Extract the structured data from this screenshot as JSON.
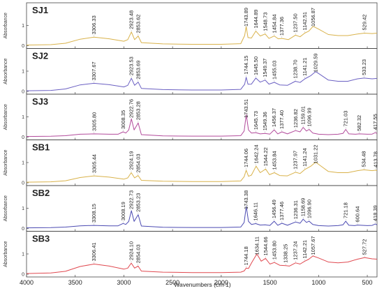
{
  "chart_data": {
    "type": "line",
    "xlabel": "Wavenumbers (cm-1)",
    "ylabel": "Absorbance",
    "xlim": [
      4000,
      400
    ],
    "x_reversed": true,
    "x_ticks": [
      4000,
      3500,
      3000,
      2500,
      2000,
      1500,
      1000,
      500
    ],
    "y_ticks": [
      0,
      1
    ],
    "grid": false,
    "panels": [
      {
        "name": "SJ1",
        "color": "#d9b24a",
        "peaks": [
          "3306.33",
          "2923.48",
          "2853.62",
          "1743.89",
          "1644.89",
          "1548.73",
          "1454.84",
          "1377.36",
          "1237.50",
          "1142.51",
          "1056.87",
          "529.42"
        ],
        "spectrum": [
          [
            4000,
            0.03
          ],
          [
            3750,
            0.05
          ],
          [
            3600,
            0.12
          ],
          [
            3450,
            0.32
          ],
          [
            3306,
            0.42
          ],
          [
            3150,
            0.34
          ],
          [
            3000,
            0.22
          ],
          [
            2960,
            0.3
          ],
          [
            2923,
            0.68
          ],
          [
            2890,
            0.3
          ],
          [
            2853,
            0.48
          ],
          [
            2820,
            0.15
          ],
          [
            2600,
            0.09
          ],
          [
            2300,
            0.07
          ],
          [
            2000,
            0.07
          ],
          [
            1800,
            0.1
          ],
          [
            1760,
            0.5
          ],
          [
            1744,
            0.95
          ],
          [
            1725,
            0.4
          ],
          [
            1690,
            0.38
          ],
          [
            1645,
            0.72
          ],
          [
            1600,
            0.48
          ],
          [
            1549,
            0.58
          ],
          [
            1510,
            0.36
          ],
          [
            1455,
            0.48
          ],
          [
            1415,
            0.34
          ],
          [
            1377,
            0.36
          ],
          [
            1310,
            0.3
          ],
          [
            1238,
            0.52
          ],
          [
            1190,
            0.44
          ],
          [
            1143,
            0.62
          ],
          [
            1100,
            0.72
          ],
          [
            1057,
            0.96
          ],
          [
            1000,
            0.82
          ],
          [
            900,
            0.55
          ],
          [
            800,
            0.5
          ],
          [
            700,
            0.5
          ],
          [
            600,
            0.58
          ],
          [
            529,
            0.62
          ],
          [
            450,
            0.6
          ],
          [
            400,
            0.62
          ]
        ]
      },
      {
        "name": "SJ2",
        "color": "#6a5fc2",
        "peaks": [
          "3307.67",
          "2923.53",
          "2853.69",
          "1744.15",
          "1645.50",
          "1549.37",
          "1455.03",
          "1238.70",
          "1141.21",
          "1029.59",
          "533.23"
        ],
        "spectrum": [
          [
            4000,
            0.03
          ],
          [
            3750,
            0.05
          ],
          [
            3600,
            0.12
          ],
          [
            3450,
            0.32
          ],
          [
            3307,
            0.4
          ],
          [
            3150,
            0.33
          ],
          [
            3000,
            0.22
          ],
          [
            2960,
            0.3
          ],
          [
            2923,
            0.65
          ],
          [
            2890,
            0.3
          ],
          [
            2853,
            0.46
          ],
          [
            2820,
            0.15
          ],
          [
            2600,
            0.09
          ],
          [
            2300,
            0.07
          ],
          [
            2000,
            0.07
          ],
          [
            1800,
            0.1
          ],
          [
            1760,
            0.35
          ],
          [
            1744,
            0.7
          ],
          [
            1725,
            0.35
          ],
          [
            1690,
            0.36
          ],
          [
            1645,
            0.66
          ],
          [
            1600,
            0.46
          ],
          [
            1549,
            0.56
          ],
          [
            1510,
            0.36
          ],
          [
            1455,
            0.45
          ],
          [
            1400,
            0.32
          ],
          [
            1320,
            0.3
          ],
          [
            1239,
            0.5
          ],
          [
            1190,
            0.44
          ],
          [
            1141,
            0.62
          ],
          [
            1080,
            0.78
          ],
          [
            1030,
            0.98
          ],
          [
            980,
            0.82
          ],
          [
            900,
            0.56
          ],
          [
            800,
            0.5
          ],
          [
            700,
            0.5
          ],
          [
            600,
            0.62
          ],
          [
            533,
            0.66
          ],
          [
            450,
            0.62
          ],
          [
            400,
            0.64
          ]
        ]
      },
      {
        "name": "SJ3",
        "color": "#b24a9b",
        "peaks": [
          "3305.80",
          "3008.35",
          "2922.76",
          "2853.28",
          "1743.51",
          "1645.73",
          "1549.36",
          "1456.37",
          "1377.40",
          "1236.82",
          "1159.01",
          "1096.99",
          "721.03",
          "582.32",
          "417.55"
        ],
        "spectrum": [
          [
            4000,
            0.03
          ],
          [
            3750,
            0.04
          ],
          [
            3600,
            0.07
          ],
          [
            3450,
            0.14
          ],
          [
            3306,
            0.16
          ],
          [
            3150,
            0.14
          ],
          [
            3060,
            0.14
          ],
          [
            3008,
            0.26
          ],
          [
            2980,
            0.2
          ],
          [
            2950,
            0.35
          ],
          [
            2923,
            0.9
          ],
          [
            2895,
            0.35
          ],
          [
            2853,
            0.7
          ],
          [
            2820,
            0.12
          ],
          [
            2600,
            0.06
          ],
          [
            2300,
            0.05
          ],
          [
            2000,
            0.05
          ],
          [
            1800,
            0.07
          ],
          [
            1765,
            0.3
          ],
          [
            1743,
            1.12
          ],
          [
            1720,
            0.35
          ],
          [
            1690,
            0.2
          ],
          [
            1646,
            0.22
          ],
          [
            1600,
            0.16
          ],
          [
            1549,
            0.18
          ],
          [
            1500,
            0.15
          ],
          [
            1456,
            0.36
          ],
          [
            1420,
            0.16
          ],
          [
            1377,
            0.26
          ],
          [
            1320,
            0.16
          ],
          [
            1237,
            0.32
          ],
          [
            1190,
            0.26
          ],
          [
            1159,
            0.48
          ],
          [
            1125,
            0.3
          ],
          [
            1097,
            0.38
          ],
          [
            1060,
            0.2
          ],
          [
            1000,
            0.14
          ],
          [
            900,
            0.12
          ],
          [
            800,
            0.14
          ],
          [
            750,
            0.18
          ],
          [
            721,
            0.38
          ],
          [
            690,
            0.16
          ],
          [
            620,
            0.14
          ],
          [
            582,
            0.16
          ],
          [
            500,
            0.14
          ],
          [
            450,
            0.15
          ],
          [
            417,
            0.22
          ],
          [
            400,
            0.18
          ]
        ]
      },
      {
        "name": "SB1",
        "color": "#d9b24a",
        "peaks": [
          "3305.44",
          "2924.19",
          "2854.03",
          "1744.06",
          "1642.24",
          "1544.22",
          "1453.84",
          "1237.97",
          "1141.24",
          "1031.22",
          "534.48",
          "413.78"
        ],
        "spectrum": [
          [
            4000,
            0.03
          ],
          [
            3750,
            0.05
          ],
          [
            3600,
            0.1
          ],
          [
            3450,
            0.26
          ],
          [
            3305,
            0.34
          ],
          [
            3150,
            0.28
          ],
          [
            3000,
            0.18
          ],
          [
            2960,
            0.24
          ],
          [
            2924,
            0.5
          ],
          [
            2890,
            0.24
          ],
          [
            2854,
            0.36
          ],
          [
            2820,
            0.12
          ],
          [
            2600,
            0.08
          ],
          [
            2300,
            0.06
          ],
          [
            2000,
            0.06
          ],
          [
            1800,
            0.09
          ],
          [
            1765,
            0.3
          ],
          [
            1744,
            0.62
          ],
          [
            1720,
            0.32
          ],
          [
            1690,
            0.38
          ],
          [
            1642,
            0.82
          ],
          [
            1600,
            0.5
          ],
          [
            1544,
            0.68
          ],
          [
            1505,
            0.4
          ],
          [
            1454,
            0.5
          ],
          [
            1400,
            0.36
          ],
          [
            1320,
            0.34
          ],
          [
            1238,
            0.52
          ],
          [
            1190,
            0.46
          ],
          [
            1141,
            0.66
          ],
          [
            1080,
            0.82
          ],
          [
            1031,
            1.02
          ],
          [
            980,
            0.84
          ],
          [
            900,
            0.56
          ],
          [
            800,
            0.5
          ],
          [
            700,
            0.5
          ],
          [
            600,
            0.6
          ],
          [
            534,
            0.64
          ],
          [
            450,
            0.6
          ],
          [
            414,
            0.62
          ],
          [
            400,
            0.6
          ]
        ]
      },
      {
        "name": "SB2",
        "color": "#4b4ab2",
        "peaks": [
          "3308.15",
          "3008.19",
          "2922.73",
          "2853.23",
          "1743.38",
          "1646.11",
          "1456.49",
          "1377.46",
          "1236.31",
          "1158.69",
          "1096.90",
          "721.18",
          "600.64",
          "418.39"
        ],
        "spectrum": [
          [
            4000,
            0.03
          ],
          [
            3750,
            0.04
          ],
          [
            3600,
            0.07
          ],
          [
            3450,
            0.13
          ],
          [
            3308,
            0.15
          ],
          [
            3150,
            0.13
          ],
          [
            3060,
            0.13
          ],
          [
            3008,
            0.25
          ],
          [
            2980,
            0.2
          ],
          [
            2950,
            0.35
          ],
          [
            2923,
            0.88
          ],
          [
            2895,
            0.35
          ],
          [
            2853,
            0.68
          ],
          [
            2820,
            0.12
          ],
          [
            2600,
            0.06
          ],
          [
            2300,
            0.05
          ],
          [
            2000,
            0.05
          ],
          [
            1800,
            0.07
          ],
          [
            1765,
            0.3
          ],
          [
            1743,
            1.1
          ],
          [
            1720,
            0.35
          ],
          [
            1690,
            0.2
          ],
          [
            1646,
            0.24
          ],
          [
            1600,
            0.17
          ],
          [
            1549,
            0.18
          ],
          [
            1500,
            0.15
          ],
          [
            1456,
            0.36
          ],
          [
            1420,
            0.16
          ],
          [
            1377,
            0.26
          ],
          [
            1320,
            0.16
          ],
          [
            1236,
            0.32
          ],
          [
            1190,
            0.26
          ],
          [
            1159,
            0.46
          ],
          [
            1125,
            0.3
          ],
          [
            1097,
            0.36
          ],
          [
            1060,
            0.2
          ],
          [
            1000,
            0.14
          ],
          [
            900,
            0.12
          ],
          [
            800,
            0.14
          ],
          [
            750,
            0.18
          ],
          [
            721,
            0.36
          ],
          [
            690,
            0.16
          ],
          [
            630,
            0.14
          ],
          [
            601,
            0.17
          ],
          [
            500,
            0.14
          ],
          [
            450,
            0.15
          ],
          [
            418,
            0.22
          ],
          [
            400,
            0.18
          ]
        ]
      },
      {
        "name": "SB3",
        "color": "#e0484f",
        "peaks": [
          "3306.41",
          "2924.10",
          "2854.03",
          "1744.18",
          "1634.11",
          "1544.66",
          "1453.80",
          "1338.25",
          "1237.24",
          "1142.21",
          "1057.67",
          "527.72"
        ],
        "spectrum": [
          [
            4000,
            0.03
          ],
          [
            3750,
            0.06
          ],
          [
            3600,
            0.14
          ],
          [
            3450,
            0.38
          ],
          [
            3306,
            0.5
          ],
          [
            3150,
            0.4
          ],
          [
            3000,
            0.25
          ],
          [
            2960,
            0.3
          ],
          [
            2924,
            0.55
          ],
          [
            2890,
            0.3
          ],
          [
            2854,
            0.4
          ],
          [
            2820,
            0.15
          ],
          [
            2600,
            0.1
          ],
          [
            2300,
            0.08
          ],
          [
            2000,
            0.08
          ],
          [
            1800,
            0.1
          ],
          [
            1765,
            0.16
          ],
          [
            1744,
            0.3
          ],
          [
            1720,
            0.28
          ],
          [
            1690,
            0.55
          ],
          [
            1634,
            1.0
          ],
          [
            1590,
            0.64
          ],
          [
            1545,
            0.78
          ],
          [
            1500,
            0.5
          ],
          [
            1454,
            0.58
          ],
          [
            1400,
            0.44
          ],
          [
            1338,
            0.42
          ],
          [
            1300,
            0.4
          ],
          [
            1237,
            0.56
          ],
          [
            1190,
            0.5
          ],
          [
            1142,
            0.64
          ],
          [
            1100,
            0.74
          ],
          [
            1058,
            0.9
          ],
          [
            1000,
            0.8
          ],
          [
            900,
            0.6
          ],
          [
            800,
            0.56
          ],
          [
            700,
            0.6
          ],
          [
            600,
            0.74
          ],
          [
            528,
            0.82
          ],
          [
            450,
            0.76
          ],
          [
            400,
            0.74
          ]
        ]
      }
    ]
  }
}
